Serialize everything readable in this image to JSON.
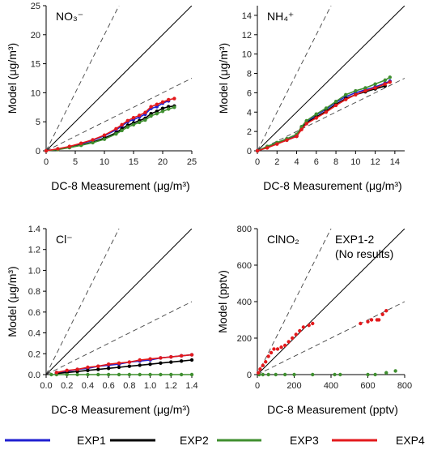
{
  "figure": {
    "legend": [
      {
        "name": "EXP1",
        "color": "#1f1fd1"
      },
      {
        "name": "EXP2",
        "color": "#000000"
      },
      {
        "name": "EXP3",
        "color": "#3f8f2f"
      },
      {
        "name": "EXP4",
        "color": "#e3191c"
      }
    ]
  },
  "chart_data": [
    {
      "type": "scatter",
      "panel_label": "NO₃⁻",
      "xlabel": "DC-8 Measurement (μg/m³)",
      "ylabel": "Model (μg/m³)",
      "xlim": [
        0,
        25
      ],
      "ylim": [
        0,
        25
      ],
      "xticks": [
        0,
        5,
        10,
        15,
        20,
        25
      ],
      "yticks": [
        0,
        5,
        10,
        15,
        20,
        25
      ],
      "reference_lines": {
        "one_to_one": 1,
        "dashed_slopes": [
          2,
          0.5
        ]
      },
      "series": [
        {
          "name": "EXP1",
          "color": "#1f1fd1",
          "x": [
            0,
            2,
            4,
            6,
            8,
            10,
            12,
            13,
            14,
            15,
            16,
            17,
            18,
            19,
            20,
            21
          ],
          "y": [
            0,
            0.3,
            0.7,
            1.2,
            1.8,
            2.6,
            3.6,
            4.3,
            5.0,
            5.4,
            5.8,
            6.3,
            7.3,
            7.6,
            8.2,
            8.6
          ]
        },
        {
          "name": "EXP2",
          "color": "#000000",
          "x": [
            0,
            2,
            4,
            6,
            8,
            10,
            12,
            13,
            14,
            15,
            16,
            17,
            18,
            19,
            20,
            21,
            22
          ],
          "y": [
            0,
            0.25,
            0.6,
            1.0,
            1.5,
            2.2,
            3.1,
            3.8,
            4.4,
            4.8,
            5.2,
            5.6,
            6.4,
            6.8,
            7.3,
            7.6,
            7.7
          ]
        },
        {
          "name": "EXP3",
          "color": "#3f8f2f",
          "x": [
            0,
            2,
            4,
            6,
            8,
            10,
            12,
            13,
            14,
            15,
            16,
            17,
            18,
            19,
            20,
            21,
            22
          ],
          "y": [
            0,
            0.2,
            0.55,
            0.95,
            1.4,
            2.0,
            2.9,
            3.5,
            4.1,
            4.5,
            4.9,
            5.3,
            6.0,
            6.4,
            6.8,
            7.2,
            7.5
          ]
        },
        {
          "name": "EXP4",
          "color": "#e3191c",
          "x": [
            0,
            2,
            4,
            6,
            8,
            10,
            12,
            13,
            14,
            15,
            16,
            17,
            18,
            19,
            20,
            21,
            22
          ],
          "y": [
            0,
            0.35,
            0.75,
            1.3,
            1.9,
            2.7,
            3.8,
            4.5,
            5.2,
            5.7,
            6.1,
            6.6,
            7.6,
            8.0,
            8.4,
            8.8,
            9.0
          ]
        }
      ]
    },
    {
      "type": "scatter",
      "panel_label": "NH₄⁺",
      "xlabel": "DC-8 Measurement (μg/m³)",
      "ylabel": "Model (μg/m³)",
      "xlim": [
        0,
        15
      ],
      "ylim": [
        0,
        15
      ],
      "xticks": [
        0,
        2,
        4,
        6,
        8,
        10,
        12,
        14
      ],
      "yticks": [
        0,
        2,
        4,
        6,
        8,
        10,
        12,
        14
      ],
      "reference_lines": {
        "one_to_one": 1,
        "dashed_slopes": [
          2,
          0.5
        ]
      },
      "series": [
        {
          "name": "EXP1",
          "color": "#1f1fd1",
          "x": [
            0,
            1,
            2,
            3,
            4,
            4.5,
            5,
            6,
            7,
            8,
            9,
            10,
            11,
            12,
            13,
            13.5
          ],
          "y": [
            0,
            0.4,
            0.8,
            1.2,
            1.6,
            2.4,
            3.0,
            3.7,
            4.3,
            5.0,
            5.6,
            6.0,
            6.3,
            6.6,
            7.0,
            7.2
          ]
        },
        {
          "name": "EXP2",
          "color": "#000000",
          "x": [
            0,
            1,
            2,
            3,
            4,
            4.5,
            5,
            6,
            7,
            8,
            9,
            10,
            11,
            12,
            13
          ],
          "y": [
            0,
            0.35,
            0.75,
            1.1,
            1.5,
            2.3,
            2.9,
            3.5,
            4.1,
            4.8,
            5.4,
            5.8,
            6.1,
            6.4,
            6.7
          ]
        },
        {
          "name": "EXP3",
          "color": "#3f8f2f",
          "x": [
            0,
            1,
            2,
            3,
            4,
            4.5,
            5,
            6,
            7,
            8,
            9,
            10,
            11,
            12,
            13,
            13.5
          ],
          "y": [
            0,
            0.45,
            0.85,
            1.25,
            1.7,
            2.5,
            3.1,
            3.8,
            4.4,
            5.1,
            5.8,
            6.2,
            6.5,
            6.9,
            7.3,
            7.6
          ]
        },
        {
          "name": "EXP4",
          "color": "#e3191c",
          "x": [
            0,
            1,
            2,
            3,
            4,
            4.5,
            5,
            6,
            7,
            8,
            9,
            10,
            11,
            12,
            13,
            13.5
          ],
          "y": [
            0,
            0.3,
            0.7,
            1.1,
            1.5,
            2.2,
            2.8,
            3.4,
            4.0,
            4.7,
            5.3,
            5.8,
            6.2,
            6.5,
            6.9,
            7.1
          ]
        }
      ]
    },
    {
      "type": "scatter",
      "panel_label": "Cl⁻",
      "xlabel": "DC-8 Measurement (μg/m³)",
      "ylabel": "Model (μg/m³)",
      "xlim": [
        0,
        1.4
      ],
      "ylim": [
        0,
        1.4
      ],
      "xticks": [
        0.0,
        0.2,
        0.4,
        0.6,
        0.8,
        1.0,
        1.2,
        1.4
      ],
      "yticks": [
        0.0,
        0.2,
        0.4,
        0.6,
        0.8,
        1.0,
        1.2,
        1.4
      ],
      "reference_lines": {
        "one_to_one": 1,
        "dashed_slopes": [
          2,
          0.5
        ]
      },
      "series": [
        {
          "name": "EXP1",
          "color": "#1f1fd1",
          "x": [
            0.1,
            0.2,
            0.3,
            0.4,
            0.5,
            0.6,
            0.7,
            0.8,
            0.9,
            1.0,
            1.1,
            1.2,
            1.3,
            1.4
          ],
          "y": [
            0.02,
            0.03,
            0.05,
            0.06,
            0.08,
            0.09,
            0.1,
            0.12,
            0.13,
            0.14,
            0.16,
            0.17,
            0.18,
            0.19
          ]
        },
        {
          "name": "EXP2",
          "color": "#000000",
          "x": [
            0.1,
            0.2,
            0.3,
            0.4,
            0.5,
            0.6,
            0.7,
            0.8,
            0.9,
            1.0,
            1.1,
            1.2,
            1.3,
            1.4
          ],
          "y": [
            0.01,
            0.02,
            0.03,
            0.04,
            0.05,
            0.06,
            0.07,
            0.08,
            0.09,
            0.1,
            0.11,
            0.12,
            0.13,
            0.14
          ]
        },
        {
          "name": "EXP3",
          "color": "#3f8f2f",
          "x": [
            0.05,
            0.1,
            0.2,
            0.3,
            0.4,
            0.5,
            0.6,
            0.7,
            0.8,
            0.9,
            1.0,
            1.1,
            1.2,
            1.3,
            1.4
          ],
          "y": [
            0.0,
            0.0,
            0.0,
            0.0,
            0.0,
            0.0,
            0.0,
            0.0,
            0.0,
            0.0,
            0.0,
            0.0,
            0.0,
            0.0,
            0.0
          ]
        },
        {
          "name": "EXP4",
          "color": "#e3191c",
          "x": [
            0.1,
            0.2,
            0.3,
            0.4,
            0.5,
            0.6,
            0.7,
            0.8,
            0.9,
            1.0,
            1.1,
            1.2,
            1.3,
            1.4
          ],
          "y": [
            0.02,
            0.04,
            0.05,
            0.07,
            0.08,
            0.1,
            0.11,
            0.12,
            0.14,
            0.15,
            0.16,
            0.17,
            0.18,
            0.19
          ]
        }
      ]
    },
    {
      "type": "scatter",
      "panel_label": "ClNO₂",
      "annotation": [
        "EXP1-2",
        "(No results)"
      ],
      "xlabel": "DC-8 Measurement (pptv)",
      "ylabel": "Model (pptv)",
      "xlim": [
        0,
        800
      ],
      "ylim": [
        0,
        800
      ],
      "xticks": [
        0,
        200,
        400,
        600,
        800
      ],
      "yticks": [
        0,
        200,
        400,
        600,
        800
      ],
      "reference_lines": {
        "one_to_one": 1,
        "dashed_slopes": [
          2,
          0.5
        ]
      },
      "series": [
        {
          "name": "EXP3",
          "color": "#3f8f2f",
          "x": [
            10,
            30,
            60,
            100,
            150,
            200,
            300,
            420,
            450,
            600,
            640,
            700,
            750
          ],
          "y": [
            0,
            0,
            0,
            0,
            0,
            0,
            0,
            0,
            0,
            0,
            0,
            10,
            20
          ]
        },
        {
          "name": "EXP4",
          "color": "#e3191c",
          "x": [
            5,
            15,
            30,
            45,
            60,
            75,
            90,
            110,
            130,
            150,
            170,
            190,
            210,
            230,
            250,
            280,
            300,
            560,
            600,
            620,
            650,
            660,
            680,
            700
          ],
          "y": [
            10,
            30,
            50,
            70,
            100,
            120,
            140,
            140,
            150,
            160,
            180,
            200,
            220,
            240,
            260,
            270,
            280,
            280,
            290,
            300,
            300,
            300,
            330,
            350
          ]
        }
      ]
    }
  ]
}
